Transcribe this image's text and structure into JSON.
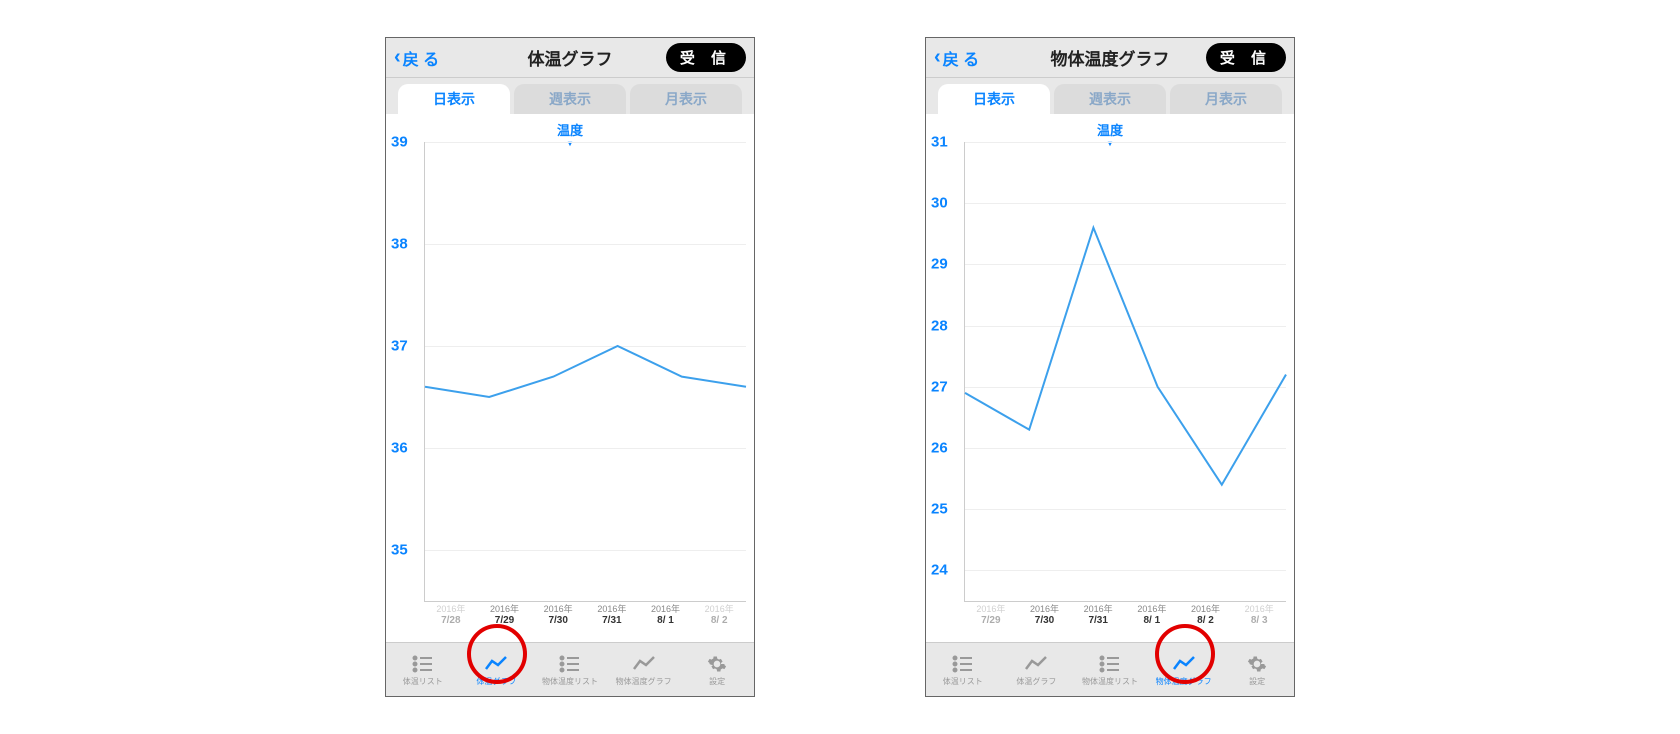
{
  "colors": {
    "accent": "#0a84ff",
    "line": "#3ca0ec",
    "grid": "#eeeeee",
    "annotation": "#e20000",
    "navbar_bg": "#e8e8e8",
    "inactive_tab_text": "#8aa8c8"
  },
  "common": {
    "back_label": "戻 る",
    "receive_label": "受 信",
    "tabs": [
      "日表示",
      "週表示",
      "月表示"
    ],
    "active_tab_index": 0,
    "y_axis_title": "温度",
    "bottom_items": [
      {
        "icon": "list",
        "label": "体温リスト"
      },
      {
        "icon": "chart",
        "label": "体温グラフ"
      },
      {
        "icon": "list",
        "label": "物体温度リスト"
      },
      {
        "icon": "chart",
        "label": "物体温度グラフ"
      },
      {
        "icon": "gear",
        "label": "設定"
      }
    ]
  },
  "screens": [
    {
      "title": "体温グラフ",
      "active_bottom_index": 1,
      "chart": {
        "type": "line",
        "ylim": [
          34.5,
          39
        ],
        "yticks": [
          35,
          36,
          37,
          38,
          39
        ],
        "x_labels": [
          {
            "year": "2016年",
            "date": "7/28",
            "faded": true
          },
          {
            "year": "2016年",
            "date": "7/29"
          },
          {
            "year": "2016年",
            "date": "7/30"
          },
          {
            "year": "2016年",
            "date": "7/31"
          },
          {
            "year": "2016年",
            "date": "8/ 1"
          },
          {
            "year": "2016年",
            "date": "8/ 2",
            "faded": true
          }
        ],
        "values": [
          36.6,
          36.5,
          36.7,
          37.0,
          36.7,
          36.6
        ],
        "line_color": "#3ca0ec",
        "line_width": 2
      }
    },
    {
      "title": "物体温度グラフ",
      "active_bottom_index": 3,
      "chart": {
        "type": "line",
        "ylim": [
          23.5,
          31
        ],
        "yticks": [
          24,
          25,
          26,
          27,
          28,
          29,
          30,
          31
        ],
        "x_labels": [
          {
            "year": "2016年",
            "date": "7/29",
            "faded": true
          },
          {
            "year": "2016年",
            "date": "7/30"
          },
          {
            "year": "2016年",
            "date": "7/31"
          },
          {
            "year": "2016年",
            "date": "8/ 1"
          },
          {
            "year": "2016年",
            "date": "8/ 2"
          },
          {
            "year": "2016年",
            "date": "8/ 3",
            "faded": true
          }
        ],
        "values": [
          26.9,
          26.3,
          29.6,
          27.0,
          25.4,
          27.2
        ],
        "line_color": "#3ca0ec",
        "line_width": 2
      }
    }
  ]
}
